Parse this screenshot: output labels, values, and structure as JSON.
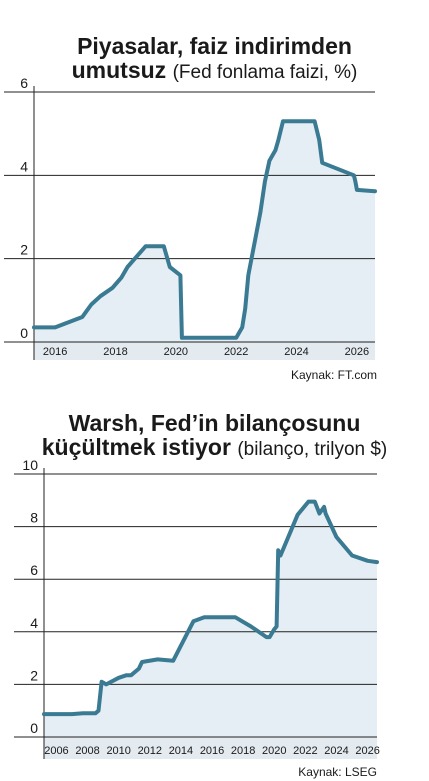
{
  "charts": [
    {
      "title_line1": "Piyasalar, faiz indirimden",
      "title_line2_bold": "umutsuz",
      "title_line2_light": "(Fed fonlama faizi, %)",
      "source": "Kaynak: FT.com"
    },
    {
      "title_line1": "Warsh, Fed’in bilançosunu",
      "title_line2_bold": "küçültmek istiyor",
      "title_line2_light": "(bilanço, trilyon $)",
      "source": "Kaynak: LSEG"
    }
  ],
  "colors": {
    "line": "#3a7b93",
    "fill": "#e5eef4",
    "grid": "#222222",
    "axis_band": "#e3eaf0"
  },
  "chart_data": [
    {
      "type": "area",
      "title": "Piyasalar, faiz indirimden umutsuz (Fed fonlama faizi, %)",
      "ylabel": "%",
      "ylim": [
        0,
        6
      ],
      "xlim": [
        2015.3,
        2026.6
      ],
      "y_ticks": [
        0,
        2,
        4,
        6
      ],
      "x_ticks": [
        2016,
        2018,
        2020,
        2022,
        2024,
        2026
      ],
      "grid": true,
      "series": [
        {
          "x": [
            2015.3,
            2016.0,
            2016.9,
            2017.0,
            2017.2,
            2017.5,
            2017.9,
            2018.2,
            2018.4,
            2018.7,
            2019.0,
            2019.6,
            2019.7,
            2019.8,
            2020.15,
            2020.2,
            2022.0,
            2022.2,
            2022.3,
            2022.4,
            2022.6,
            2022.8,
            2022.95,
            2023.1,
            2023.3,
            2023.4,
            2023.55,
            2024.6,
            2024.75,
            2024.85,
            2025.9,
            2025.95,
            2026.0,
            2026.6
          ],
          "y": [
            0.35,
            0.35,
            0.6,
            0.7,
            0.9,
            1.1,
            1.3,
            1.55,
            1.8,
            2.05,
            2.3,
            2.3,
            2.05,
            1.8,
            1.6,
            0.1,
            0.1,
            0.35,
            0.8,
            1.6,
            2.35,
            3.1,
            3.85,
            4.35,
            4.6,
            4.85,
            5.3,
            5.3,
            4.85,
            4.3,
            4.0,
            3.85,
            3.65,
            3.62
          ]
        }
      ],
      "source": "Kaynak: FT.com"
    },
    {
      "type": "area",
      "title": "Warsh, Fed’in bilançosunu küçültmek istiyor (bilanço, trilyon $)",
      "ylabel": "trilyon $",
      "ylim": [
        0,
        10
      ],
      "xlim": [
        2005.2,
        2026.6
      ],
      "y_ticks": [
        0,
        2,
        4,
        6,
        8,
        10
      ],
      "x_ticks": [
        2006,
        2008,
        2010,
        2012,
        2014,
        2016,
        2018,
        2020,
        2022,
        2024,
        2026
      ],
      "grid": true,
      "series": [
        {
          "x": [
            2005.2,
            2007.0,
            2007.7,
            2008.5,
            2008.7,
            2008.9,
            2009.2,
            2010.0,
            2010.5,
            2010.8,
            2011.3,
            2011.5,
            2012.5,
            2013.5,
            2014.8,
            2015.5,
            2017.5,
            2018.5,
            2019.5,
            2019.7,
            2020.0,
            2020.15,
            2020.25,
            2020.4,
            2021.0,
            2021.5,
            2022.2,
            2022.6,
            2022.9,
            2023.2,
            2023.3,
            2024.0,
            2025.0,
            2026.0,
            2026.6
          ],
          "y": [
            0.87,
            0.87,
            0.9,
            0.9,
            1.0,
            2.1,
            2.0,
            2.25,
            2.35,
            2.35,
            2.6,
            2.85,
            2.95,
            2.9,
            4.4,
            4.55,
            4.55,
            4.2,
            3.8,
            3.8,
            4.1,
            4.2,
            7.1,
            6.9,
            7.75,
            8.45,
            8.95,
            8.95,
            8.5,
            8.75,
            8.5,
            7.6,
            6.9,
            6.7,
            6.65
          ]
        }
      ],
      "source": "Kaynak: LSEG"
    }
  ]
}
